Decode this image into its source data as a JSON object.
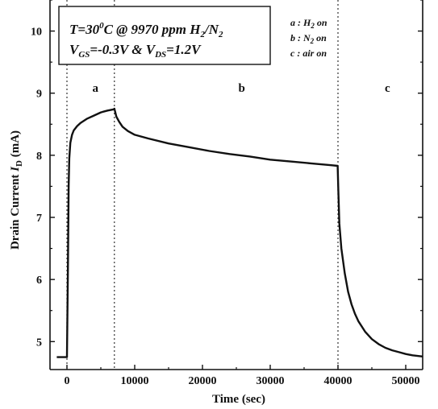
{
  "chart_data": {
    "type": "line",
    "xlabel": "Time (sec)",
    "ylabel_main": "Drain Current ",
    "ylabel_symbol": "I",
    "ylabel_sub": "D",
    "ylabel_unit": " (mA)",
    "xlim": [
      -2500,
      52500
    ],
    "ylim": [
      4.55,
      10.5
    ],
    "x_ticks": [
      0,
      10000,
      20000,
      30000,
      40000,
      50000
    ],
    "y_ticks": [
      5,
      6,
      7,
      8,
      9,
      10
    ],
    "event_lines": [
      0,
      7000,
      40000
    ],
    "regions": [
      {
        "label": "a",
        "x": 4200
      },
      {
        "label": "b",
        "x": 25800
      },
      {
        "label": "c",
        "x": 47300
      }
    ],
    "info_box": {
      "line1": {
        "p1": "T=30",
        "sup": "0",
        "p2": "C @ 9970 ppm H",
        "sub1": "2",
        "p3": "/N",
        "sub2": "2"
      },
      "line2": {
        "p1": "V",
        "sub1": "GS",
        "p2": "=-0.3V & V",
        "sub2": "DS",
        "p3": "=1.2V"
      }
    },
    "legend": [
      {
        "key": "a : H",
        "sub": "2",
        "rest": " on"
      },
      {
        "key": "b : N",
        "sub": "2",
        "rest": " on"
      },
      {
        "key": "c : air on",
        "sub": "",
        "rest": ""
      }
    ],
    "series": [
      {
        "x": [
          -1500,
          0,
          150,
          250,
          350,
          500,
          750,
          1000,
          1500,
          2000,
          3000,
          4000,
          5000,
          6000,
          6900,
          7000,
          7300,
          7700,
          8200,
          9000,
          10000,
          12000,
          15000,
          18000,
          21000,
          24000,
          27000,
          30000,
          33000,
          36000,
          39000,
          39950,
          40050,
          40200,
          40500,
          41000,
          41500,
          42000,
          42500,
          43000,
          44000,
          45000,
          46000,
          47000,
          48000,
          49000,
          50000,
          51000,
          52500
        ],
        "y": [
          4.75,
          4.75,
          6.3,
          7.5,
          7.95,
          8.2,
          8.33,
          8.4,
          8.47,
          8.52,
          8.59,
          8.64,
          8.69,
          8.72,
          8.74,
          8.75,
          8.62,
          8.54,
          8.46,
          8.39,
          8.33,
          8.27,
          8.19,
          8.13,
          8.07,
          8.02,
          7.98,
          7.93,
          7.9,
          7.87,
          7.84,
          7.83,
          7.45,
          6.9,
          6.5,
          6.1,
          5.8,
          5.6,
          5.45,
          5.33,
          5.16,
          5.04,
          4.96,
          4.9,
          4.86,
          4.83,
          4.8,
          4.78,
          4.76
        ]
      }
    ]
  }
}
